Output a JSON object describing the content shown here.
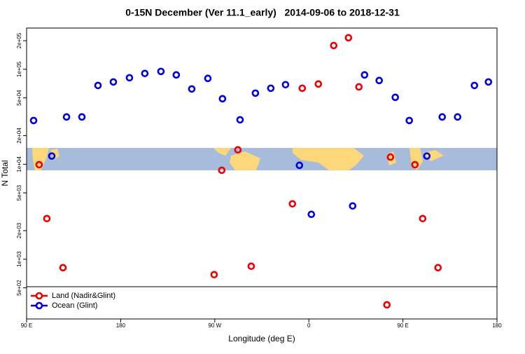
{
  "chart_data": {
    "type": "scatter",
    "title": "0-15N December (Ver 11.1_early)   2014-09-06 to 2018-12-31",
    "x_label": "Longitude (deg E)",
    "y_label": "N Total",
    "xlim": [
      90,
      540
    ],
    "xticks": [
      {
        "value": 90,
        "label": "90 E"
      },
      {
        "value": 180,
        "label": "180"
      },
      {
        "value": 270,
        "label": "90 W"
      },
      {
        "value": 360,
        "label": "0"
      },
      {
        "value": 450,
        "label": "90 E"
      },
      {
        "value": 540,
        "label": "180"
      }
    ],
    "ylim": [
      235,
      272000
    ],
    "y_scale": "log",
    "yticks": [
      {
        "value": 500,
        "label": "5e+02"
      },
      {
        "value": 1000,
        "label": "1e+03"
      },
      {
        "value": 2000,
        "label": "2e+03"
      },
      {
        "value": 5000,
        "label": "5e+03"
      },
      {
        "value": 10000,
        "label": "1e+04"
      },
      {
        "value": 20000,
        "label": "2e+04"
      },
      {
        "value": 50000,
        "label": "5e+04"
      },
      {
        "value": 100000,
        "label": "1e+05"
      },
      {
        "value": 200000,
        "label": "2e+05"
      }
    ],
    "legend": "bottom-left",
    "series": [
      {
        "name": "Land (Nadir&Glint)",
        "color": "#ee0000",
        "x": [
          102.0,
          109.4,
          124.8,
          269.4,
          276.7,
          292.1,
          304.9,
          344.3,
          353.7,
          369.1,
          383.8,
          397.9,
          407.9,
          434.7,
          438.1,
          461.5,
          468.9,
          483.6
        ],
        "values": [
          9900,
          2680,
          815,
          688,
          8650,
          14200,
          844,
          3830,
          63200,
          70000,
          178000,
          215000,
          65300,
          331,
          11900,
          9900,
          2680,
          815
        ]
      },
      {
        "name": "Ocean (Glint)",
        "color": "#0000dd",
        "x": [
          96.7,
          114.1,
          128.2,
          142.9,
          158.3,
          173.0,
          188.4,
          203.1,
          218.5,
          233.2,
          248.0,
          263.4,
          277.4,
          294.2,
          308.9,
          323.6,
          337.7,
          351.0,
          362.4,
          401.9,
          413.3,
          427.3,
          442.7,
          456.1,
          472.9,
          487.6,
          502.3,
          518.4,
          531.8
        ],
        "values": [
          28900,
          12200,
          31500,
          31500,
          67600,
          73600,
          81500,
          90400,
          95000,
          87300,
          62100,
          80200,
          49000,
          29400,
          56100,
          63200,
          68900,
          9750,
          2970,
          3640,
          87300,
          76200,
          50700,
          28900,
          12200,
          31500,
          31500,
          67600,
          73600
        ]
      }
    ]
  }
}
